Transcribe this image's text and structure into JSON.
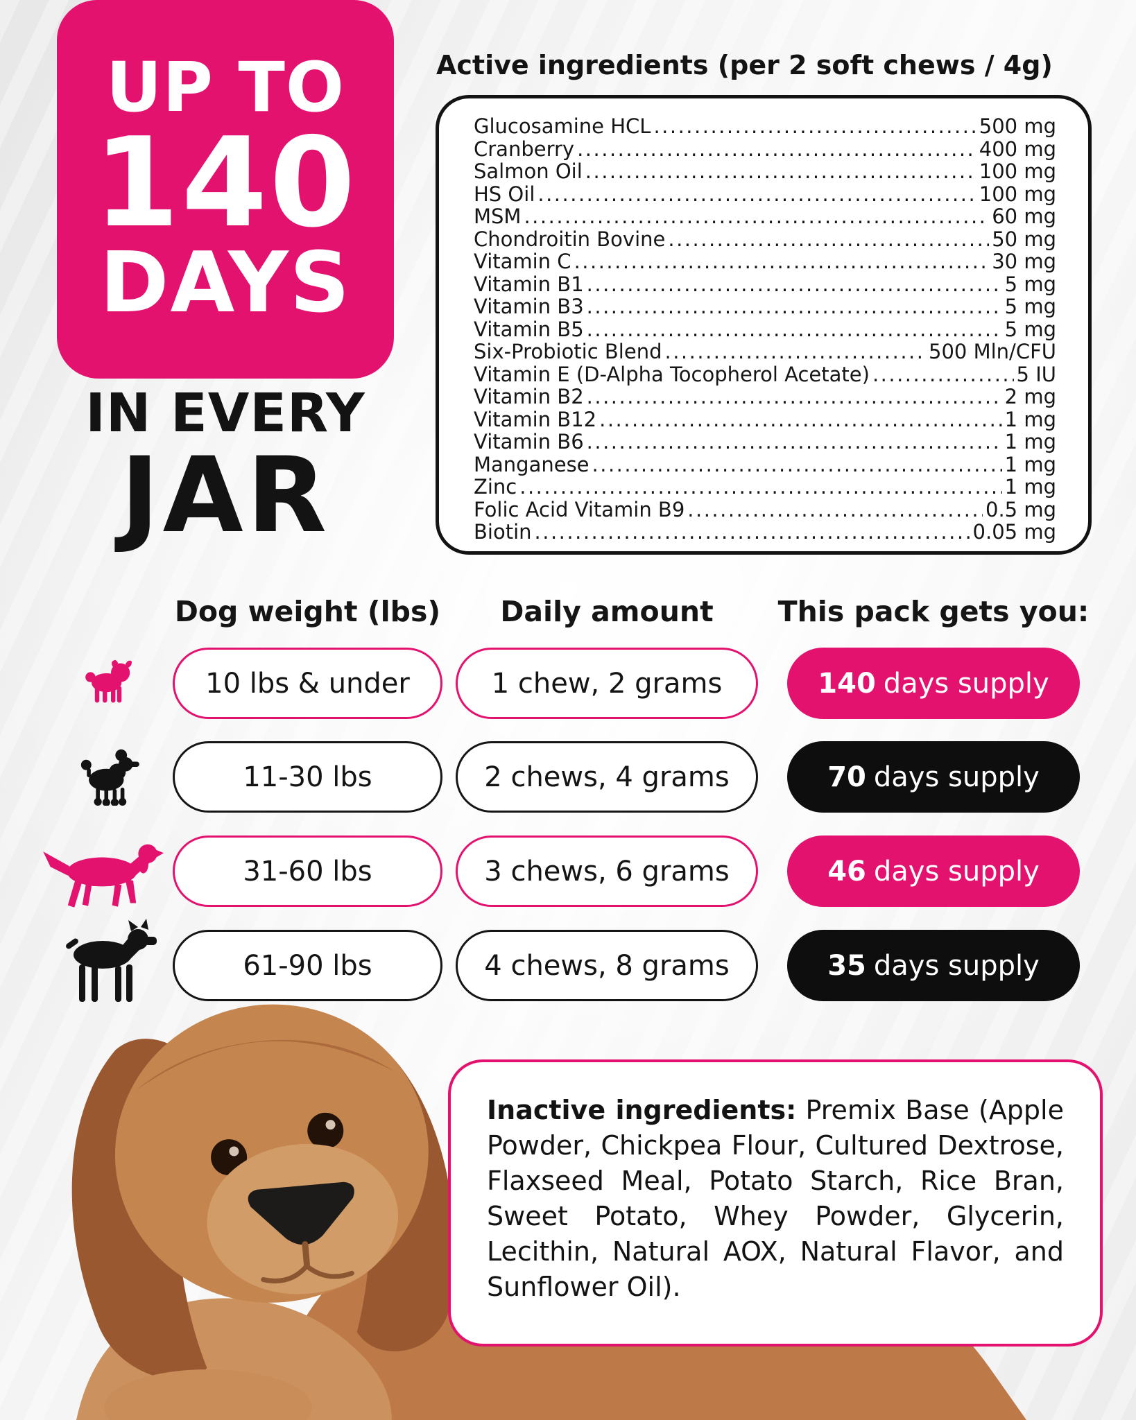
{
  "colors": {
    "pink": "#E4126F",
    "ink": "#131313"
  },
  "hero": {
    "badge_top": "UP TO",
    "badge_number": "140",
    "badge_bottom": "DAYS",
    "sub_line1": "IN EVERY",
    "sub_line2": "JAR"
  },
  "active_ingredients": {
    "heading": "Active ingredients (per 2 soft chews / 4g)",
    "items": [
      {
        "name": "Glucosamine HCL",
        "amount": "500 mg"
      },
      {
        "name": "Cranberry",
        "amount": "400 mg"
      },
      {
        "name": "Salmon Oil",
        "amount": "100 mg"
      },
      {
        "name": "HS Oil",
        "amount": "100 mg"
      },
      {
        "name": "MSM",
        "amount": "60 mg"
      },
      {
        "name": "Chondroitin Bovine",
        "amount": "50 mg"
      },
      {
        "name": "Vitamin C",
        "amount": "30 mg"
      },
      {
        "name": "Vitamin B1",
        "amount": "5 mg"
      },
      {
        "name": "Vitamin B3",
        "amount": "5 mg"
      },
      {
        "name": "Vitamin B5",
        "amount": "5 mg"
      },
      {
        "name": "Six-Probiotic Blend",
        "amount": "500 Mln/CFU"
      },
      {
        "name": "Vitamin E (D-Alpha Tocopherol Acetate)",
        "amount": "5 IU"
      },
      {
        "name": "Vitamin B2",
        "amount": "2 mg"
      },
      {
        "name": "Vitamin B12",
        "amount": "1 mg"
      },
      {
        "name": "Vitamin B6",
        "amount": "1 mg"
      },
      {
        "name": "Manganese",
        "amount": "1 mg"
      },
      {
        "name": "Zinc",
        "amount": "1 mg"
      },
      {
        "name": "Folic Acid Vitamin B9",
        "amount": "0.5 mg"
      },
      {
        "name": "Biotin",
        "amount": "0.05 mg"
      }
    ]
  },
  "dosage_table": {
    "headers": [
      "Dog weight (lbs)",
      "Daily amount",
      "This pack gets you:"
    ],
    "rows": [
      {
        "icon": "pug-icon",
        "accent": "pink",
        "weight": "10 lbs & under",
        "daily": "1 chew, 2 grams",
        "supply_strong": "140",
        "supply_rest": "days supply"
      },
      {
        "icon": "poodle-icon",
        "accent": "black",
        "weight": "11-30 lbs",
        "daily": "2 chews, 4 grams",
        "supply_strong": "70",
        "supply_rest": "days supply"
      },
      {
        "icon": "setter-icon",
        "accent": "pink",
        "weight": "31-60 lbs",
        "daily": "3 chews, 6 grams",
        "supply_strong": "46",
        "supply_rest": "days supply"
      },
      {
        "icon": "boxer-icon",
        "accent": "black",
        "weight": "61-90 lbs",
        "daily": "4 chews, 8 grams",
        "supply_strong": "35",
        "supply_rest": "days supply"
      }
    ]
  },
  "inactive_ingredients": {
    "label": "Inactive ingredients:",
    "text": " Premix Base (Apple Powder, Chickpea Flour, Cultured Dextrose, Flaxseed Meal, Potato Starch, Rice Bran, Sweet Potato, Whey Powder, Glycerin, Lecithin, Natural AOX, Natural Flavor, and Sunflower Oil)."
  }
}
